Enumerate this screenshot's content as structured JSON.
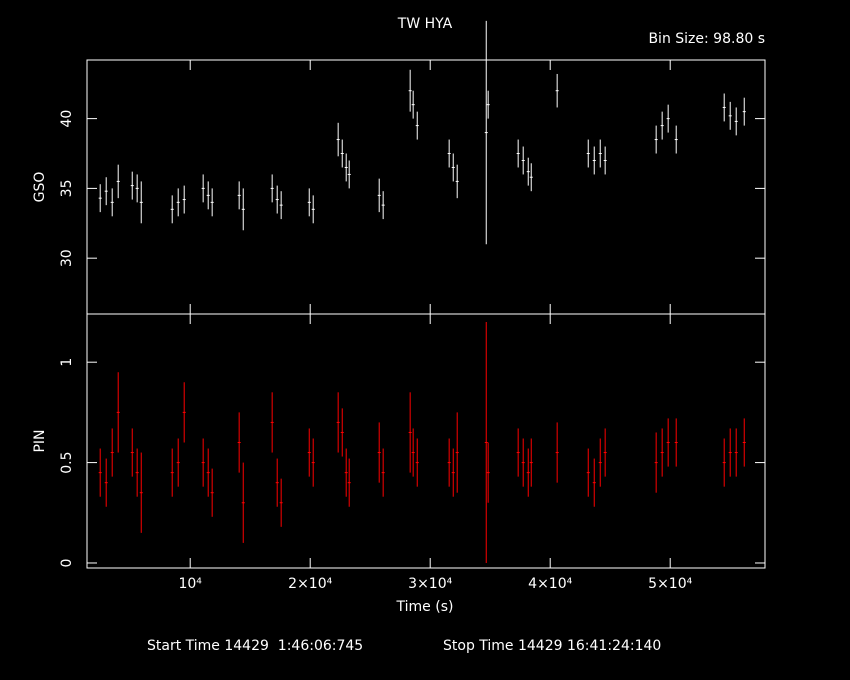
{
  "chart_data": [
    {
      "type": "errorbar",
      "title": "TW HYA",
      "subtitle": "Bin Size: 98.80 s",
      "ylabel": "GSO",
      "color": "#ffffff",
      "x": [
        2500,
        3000,
        3500,
        4000,
        5170,
        5580,
        5920,
        8500,
        9000,
        9500,
        11080,
        11500,
        11830,
        14080,
        14420,
        16830,
        17250,
        17580,
        19920,
        20250,
        22330,
        22670,
        23000,
        23250,
        25750,
        26080,
        28330,
        28580,
        28920,
        31580,
        31920,
        32250,
        34670,
        34830,
        37330,
        37750,
        38170,
        38420,
        40580,
        43170,
        43670,
        44170,
        44580,
        48830,
        49330,
        49830,
        50500,
        54500,
        55000,
        55500,
        56170
      ],
      "values": [
        34.3,
        34.8,
        34,
        35.5,
        35.2,
        35,
        34,
        33.5,
        34,
        34.2,
        35,
        34.5,
        34,
        34.5,
        33.5,
        35,
        34.2,
        33.8,
        34,
        33.5,
        38.5,
        37.5,
        36.5,
        36,
        34.5,
        33.8,
        42,
        41,
        39.5,
        37.5,
        36.5,
        35.5,
        39,
        41,
        37.5,
        37,
        36.2,
        35.8,
        42,
        37.5,
        37,
        37.5,
        37,
        38.5,
        39.5,
        40,
        38.5,
        40.8,
        40.2,
        39.8,
        40.5
      ],
      "errors": [
        1,
        1,
        1,
        1.2,
        1,
        1,
        1.5,
        1,
        1,
        1,
        1,
        1,
        1,
        1,
        1.5,
        1,
        1,
        1,
        1,
        1,
        1.2,
        1,
        1,
        1,
        1.2,
        1,
        1.5,
        1,
        1,
        1,
        1,
        1.2,
        8,
        1,
        1,
        1,
        1,
        1,
        1.2,
        1,
        1,
        1,
        1,
        1,
        1,
        1,
        1,
        1,
        1,
        1,
        1
      ],
      "xlim": [
        1400,
        57900
      ],
      "ylim": [
        26,
        44.2
      ],
      "yticks": [
        30,
        35,
        40
      ],
      "xticks": [
        10000,
        20000,
        30000,
        40000,
        50000
      ]
    },
    {
      "type": "errorbar",
      "ylabel": "PIN",
      "xlabel": "Time (s)",
      "color": "#ff0000",
      "x": [
        2500,
        3000,
        3500,
        4000,
        5170,
        5580,
        5920,
        8500,
        9000,
        9500,
        11080,
        11500,
        11830,
        14080,
        14420,
        16830,
        17250,
        17580,
        19920,
        20250,
        22330,
        22670,
        23000,
        23250,
        25750,
        26080,
        28330,
        28580,
        28920,
        31580,
        31920,
        32250,
        34670,
        34830,
        37330,
        37750,
        38170,
        38420,
        40580,
        43170,
        43670,
        44170,
        44580,
        48830,
        49330,
        49830,
        50500,
        54500,
        55000,
        55500,
        56170
      ],
      "values": [
        0.45,
        0.4,
        0.55,
        0.75,
        0.55,
        0.45,
        0.35,
        0.45,
        0.5,
        0.75,
        0.5,
        0.45,
        0.35,
        0.6,
        0.3,
        0.7,
        0.4,
        0.3,
        0.55,
        0.5,
        0.7,
        0.65,
        0.45,
        0.4,
        0.55,
        0.45,
        0.65,
        0.55,
        0.5,
        0.5,
        0.45,
        0.55,
        0.6,
        0.45,
        0.55,
        0.5,
        0.45,
        0.5,
        0.55,
        0.45,
        0.4,
        0.5,
        0.55,
        0.5,
        0.55,
        0.6,
        0.6,
        0.5,
        0.55,
        0.55,
        0.6
      ],
      "errors": [
        0.12,
        0.12,
        0.12,
        0.2,
        0.12,
        0.12,
        0.2,
        0.12,
        0.12,
        0.15,
        0.12,
        0.12,
        0.12,
        0.15,
        0.2,
        0.15,
        0.12,
        0.12,
        0.12,
        0.12,
        0.15,
        0.12,
        0.12,
        0.12,
        0.15,
        0.12,
        0.2,
        0.12,
        0.12,
        0.12,
        0.12,
        0.2,
        0.6,
        0.15,
        0.12,
        0.12,
        0.12,
        0.12,
        0.15,
        0.12,
        0.12,
        0.12,
        0.12,
        0.15,
        0.12,
        0.12,
        0.12,
        0.12,
        0.12,
        0.12,
        0.12
      ],
      "xlim": [
        1400,
        57900
      ],
      "ylim": [
        -0.025,
        1.24
      ],
      "yticks": [
        0,
        0.5,
        1
      ],
      "xticks": [
        {
          "value": 10000,
          "label": "10⁴"
        },
        {
          "value": 20000,
          "label": "2×10⁴"
        },
        {
          "value": 30000,
          "label": "3×10⁴"
        },
        {
          "value": 40000,
          "label": "4×10⁴"
        },
        {
          "value": 50000,
          "label": "5×10⁴"
        }
      ]
    }
  ],
  "footer": {
    "start": "Start Time 14429  1:46:06:745",
    "stop": "Stop Time 14429 16:41:24:140"
  }
}
